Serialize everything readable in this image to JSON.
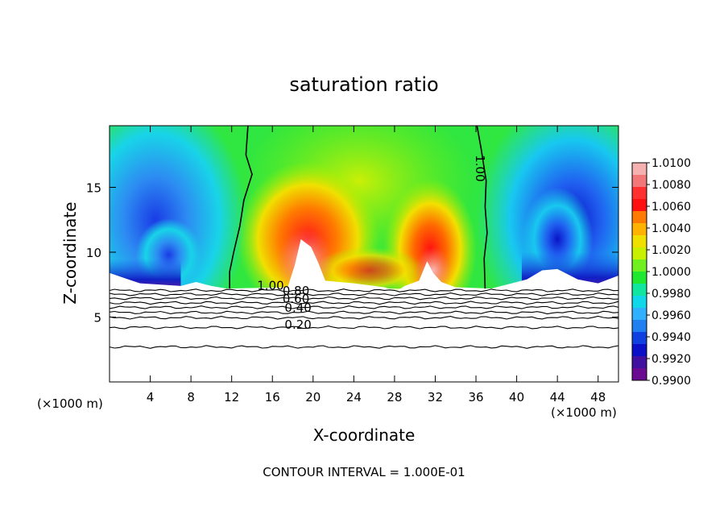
{
  "chart_data": {
    "type": "heatmap",
    "title": "saturation ratio",
    "xlabel": "X-coordinate",
    "ylabel": "Z-coordinate",
    "x_unit": "(×1000 m)",
    "y_unit": "(×1000 m)",
    "xlim": [
      0,
      50
    ],
    "ylim": [
      0,
      19.75
    ],
    "x_ticks": [
      4,
      8,
      12,
      16,
      20,
      24,
      28,
      32,
      36,
      40,
      44,
      48
    ],
    "x_tick_labels": [
      "4",
      "8",
      "12",
      "16",
      "20",
      "24",
      "28",
      "32",
      "36",
      "40",
      "44",
      "48"
    ],
    "y_ticks": [
      5,
      10,
      15
    ],
    "y_tick_labels": [
      "5",
      "10",
      "15"
    ],
    "footer": "CONTOUR INTERVAL = 1.000E-01",
    "colorbar": {
      "min": 0.99,
      "max": 1.01,
      "labels": [
        "1.0100",
        "1.0080",
        "1.0060",
        "1.0040",
        "1.0020",
        "1.0000",
        "0.9980",
        "0.9960",
        "0.9940",
        "0.9920",
        "0.9900"
      ],
      "colors": [
        "#f5b0b0",
        "#f27878",
        "#ff3030",
        "#ff1010",
        "#ff7a00",
        "#ffb300",
        "#f0e000",
        "#c8f000",
        "#70f020",
        "#20e830",
        "#10e6a0",
        "#10d8e8",
        "#30b0ff",
        "#2080f0",
        "#1040e0",
        "#0a10c8",
        "#4010a0",
        "#6a0a90"
      ]
    },
    "contour_labels": [
      {
        "text": "1.00",
        "x": 14.5,
        "z": 7.1
      },
      {
        "text": "0.80",
        "x": 17.0,
        "z": 6.7
      },
      {
        "text": "0.60",
        "x": 17.0,
        "z": 6.1
      },
      {
        "text": "0.40",
        "x": 17.2,
        "z": 5.4
      },
      {
        "text": "0.20",
        "x": 17.2,
        "z": 4.1
      },
      {
        "text": "1.00",
        "x": 36.0,
        "z": 17.5
      }
    ],
    "contour_lines_below": [
      7.05,
      6.75,
      6.45,
      6.1,
      5.75,
      5.35,
      4.95,
      4.2,
      2.7
    ],
    "saturated_boundary_left": [
      [
        13.6,
        19.75
      ],
      [
        13.4,
        17.5
      ],
      [
        14.0,
        16.0
      ],
      [
        13.2,
        14.0
      ],
      [
        12.8,
        12.0
      ],
      [
        12.2,
        10.0
      ],
      [
        11.8,
        8.5
      ],
      [
        11.8,
        7.2
      ]
    ],
    "saturated_boundary_right": [
      [
        36.1,
        19.75
      ],
      [
        36.5,
        18.0
      ],
      [
        37.0,
        15.5
      ],
      [
        36.9,
        13.5
      ],
      [
        37.1,
        11.5
      ],
      [
        36.8,
        9.5
      ],
      [
        36.9,
        7.2
      ]
    ]
  }
}
